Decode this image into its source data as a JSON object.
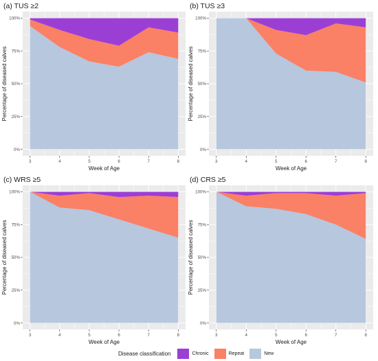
{
  "figure": {
    "legend": {
      "title": "Disease classification",
      "entries": [
        {
          "name": "Chronic",
          "color": "#9B3FD4"
        },
        {
          "name": "Repeat",
          "color": "#FA8066"
        },
        {
          "name": "New",
          "color": "#B6C7DE"
        }
      ]
    },
    "panel_background": "#EBEBEB",
    "gridline_color": "#FFFFFF"
  },
  "chart_data": [
    {
      "type": "area",
      "stacked": true,
      "title": "(a) TUS ≥2",
      "xlabel": "Week of Age",
      "ylabel": "Percentage of diseased calves",
      "x": [
        3,
        4,
        5,
        6,
        7,
        8
      ],
      "xlim": [
        3,
        8
      ],
      "ylim": [
        0,
        100
      ],
      "xticks": [
        "3",
        "4",
        "5",
        "6",
        "7",
        "8"
      ],
      "yticks": [
        "0%",
        "25%",
        "50%",
        "75%",
        "100%"
      ],
      "series": [
        {
          "name": "New",
          "values": [
            94,
            78,
            67,
            63,
            74,
            69
          ]
        },
        {
          "name": "Repeat",
          "values": [
            5,
            13,
            17,
            16,
            19,
            20
          ]
        },
        {
          "name": "Chronic",
          "values": [
            1,
            9,
            16,
            21,
            7,
            11
          ]
        }
      ]
    },
    {
      "type": "area",
      "stacked": true,
      "title": "(b) TUS ≥3",
      "xlabel": "Week of Age",
      "ylabel": "Percentage of diseased calves",
      "x": [
        3,
        4,
        5,
        6,
        7,
        8
      ],
      "xlim": [
        3,
        8
      ],
      "ylim": [
        0,
        100
      ],
      "xticks": [
        "3",
        "4",
        "5",
        "6",
        "7",
        "8"
      ],
      "yticks": [
        "0%",
        "25%",
        "50%",
        "75%",
        "100%"
      ],
      "series": [
        {
          "name": "New",
          "values": [
            100,
            100,
            73,
            60,
            59,
            51
          ]
        },
        {
          "name": "Repeat",
          "values": [
            0,
            0,
            18,
            27,
            37,
            42
          ]
        },
        {
          "name": "Chronic",
          "values": [
            0,
            0,
            9,
            13,
            4,
            7
          ]
        }
      ]
    },
    {
      "type": "area",
      "stacked": true,
      "title": "(c) WRS ≥5",
      "xlabel": "Week of Age",
      "ylabel": "Percentage of diseased calves",
      "x": [
        3,
        4,
        5,
        6,
        7,
        8
      ],
      "xlim": [
        3,
        8
      ],
      "ylim": [
        0,
        100
      ],
      "xticks": [
        "3",
        "4",
        "5",
        "6",
        "7",
        "8"
      ],
      "yticks": [
        "0%",
        "25%",
        "50%",
        "75%",
        "100%"
      ],
      "series": [
        {
          "name": "New",
          "values": [
            100,
            88,
            86,
            79,
            72,
            65
          ]
        },
        {
          "name": "Repeat",
          "values": [
            0,
            9,
            13,
            17,
            25,
            31
          ]
        },
        {
          "name": "Chronic",
          "values": [
            0,
            3,
            1,
            4,
            3,
            4
          ]
        }
      ]
    },
    {
      "type": "area",
      "stacked": true,
      "title": "(d) CRS ≥5",
      "xlabel": "Week of Age",
      "ylabel": "Percentage of diseased calves",
      "x": [
        3,
        4,
        5,
        6,
        7,
        8
      ],
      "xlim": [
        3,
        8
      ],
      "ylim": [
        0,
        100
      ],
      "xticks": [
        "3",
        "4",
        "5",
        "6",
        "7",
        "8"
      ],
      "yticks": [
        "0%",
        "25%",
        "50%",
        "75%",
        "100%"
      ],
      "series": [
        {
          "name": "New",
          "values": [
            100,
            89,
            87,
            83,
            75,
            64
          ]
        },
        {
          "name": "Repeat",
          "values": [
            0,
            8,
            12,
            16,
            22,
            35
          ]
        },
        {
          "name": "Chronic",
          "values": [
            0,
            3,
            1,
            1,
            3,
            1
          ]
        }
      ]
    }
  ]
}
